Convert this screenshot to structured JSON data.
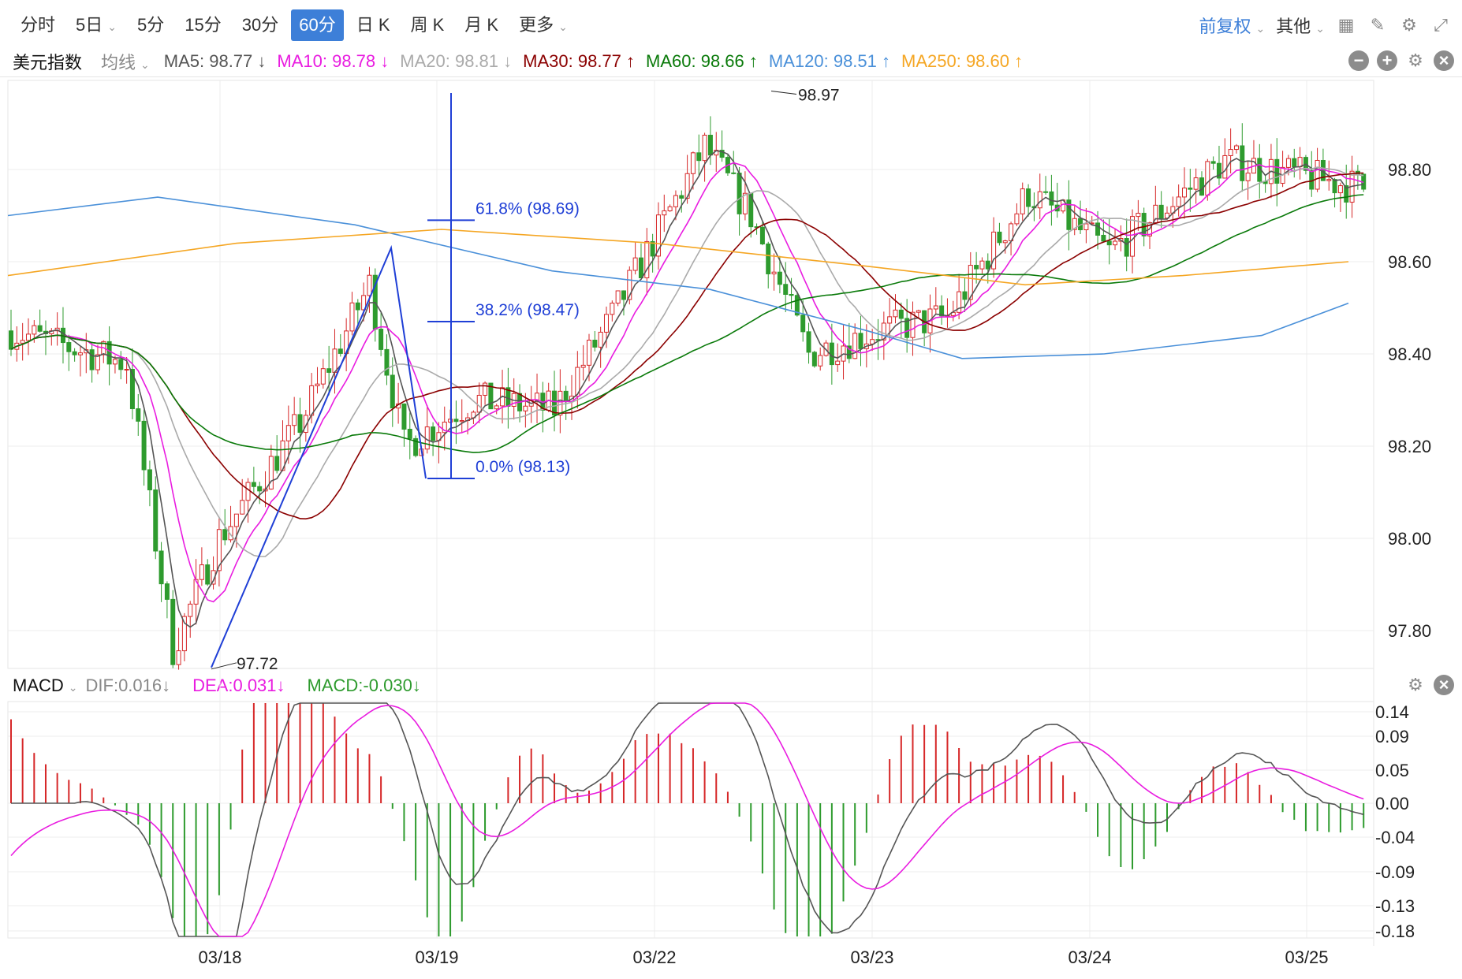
{
  "toolbar": {
    "periods": [
      {
        "label": "分时"
      },
      {
        "label": "5日",
        "dropdown": true
      },
      {
        "label": "5分"
      },
      {
        "label": "15分"
      },
      {
        "label": "30分"
      },
      {
        "label": "60分",
        "active": true
      },
      {
        "label": "日 K"
      },
      {
        "label": "周 K"
      },
      {
        "label": "月 K"
      },
      {
        "label": "更多",
        "dropdown": true
      }
    ],
    "adjust_label": "前复权",
    "other_label": "其他",
    "icons": [
      "grid-icon",
      "pencil-icon",
      "gear-icon",
      "expand-icon"
    ]
  },
  "ma_legend": {
    "name": "美元指数",
    "type_label": "均线",
    "items": [
      {
        "label": "MA5: 98.77 ↓",
        "color": "#555555"
      },
      {
        "label": "MA10: 98.78 ↓",
        "color": "#e91ce0"
      },
      {
        "label": "MA20: 98.81 ↓",
        "color": "#aaaaaa"
      },
      {
        "label": "MA30: 98.77 ↑",
        "color": "#8b0000"
      },
      {
        "label": "MA60: 98.66 ↑",
        "color": "#0a7a0a"
      },
      {
        "label": "MA120: 98.51 ↑",
        "color": "#4a90d9"
      },
      {
        "label": "MA250: 98.60 ↑",
        "color": "#f5a623"
      }
    ]
  },
  "macd_legend": {
    "name": "MACD",
    "items": [
      {
        "label": "DIF:0.016↓",
        "color": "#888888"
      },
      {
        "label": "DEA:0.031↓",
        "color": "#e91ce0"
      },
      {
        "label": "MACD:-0.030↓",
        "color": "#2e9b2e"
      }
    ]
  },
  "chart_data": [
    {
      "type": "candlestick",
      "title": "美元指数 60分",
      "x_labels": [
        "03/18",
        "03/19",
        "03/22",
        "03/23",
        "03/24",
        "03/25"
      ],
      "y_ticks": [
        "98.80",
        "98.60",
        "98.40",
        "98.20",
        "98.00",
        "97.80"
      ],
      "ylim": [
        97.72,
        98.97
      ],
      "annotations": [
        {
          "text": "98.97",
          "role": "high"
        },
        {
          "text": "97.72",
          "role": "low"
        }
      ],
      "fibonacci": [
        {
          "text": "61.8% (98.69)",
          "value": 98.69
        },
        {
          "text": "38.2% (98.47)",
          "value": 98.47
        },
        {
          "text": "0.0% (98.13)",
          "value": 98.13
        }
      ],
      "colors": {
        "up": "#d62728",
        "down": "#2e9b2e",
        "fib": "#1f3fd6"
      }
    },
    {
      "type": "bar+line",
      "title": "MACD",
      "y_ticks": [
        "0.14",
        "0.09",
        "0.05",
        "0.00",
        "-0.04",
        "-0.09",
        "-0.13",
        "-0.18"
      ],
      "ylim": [
        -0.18,
        0.14
      ]
    }
  ]
}
